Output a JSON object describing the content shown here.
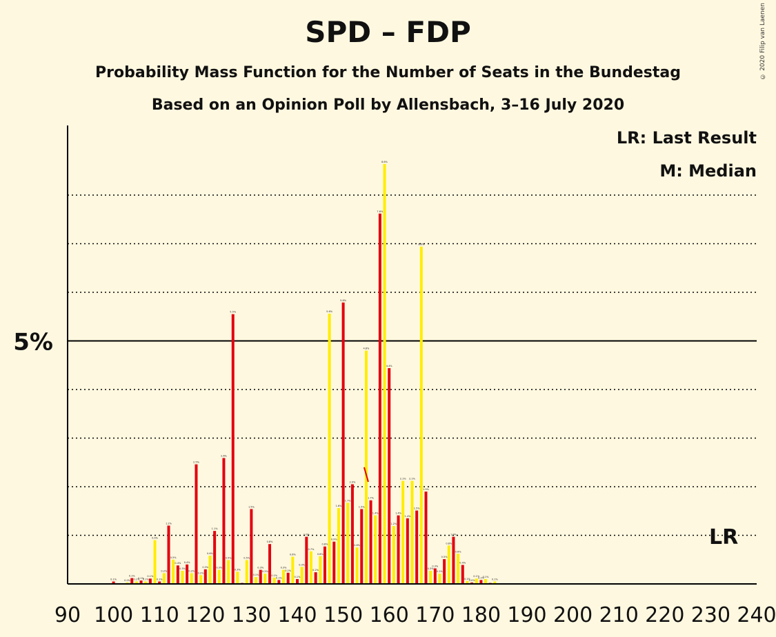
{
  "title": "SPD – FDP",
  "subtitle": "Probability Mass Function for the Number of Seats in the Bundestag",
  "subtitle2": "Based on an Opinion Poll by Allensbach, 3–16 July 2020",
  "copyright": "© 2020 Filip van Laenen",
  "legend": {
    "lr": "LR: Last Result",
    "median": "M: Median"
  },
  "lr_marker": "LR",
  "colors": {
    "red": "#E3000F",
    "yellow": "#FFED00",
    "background": "#FFF8E0",
    "axis": "#000000"
  },
  "chart_data": {
    "type": "bar",
    "xlabel": "",
    "ylabel": "",
    "xlim": [
      90,
      240
    ],
    "ylim": [
      0,
      9.4
    ],
    "xticks": [
      90,
      100,
      110,
      120,
      130,
      140,
      150,
      160,
      170,
      180,
      190,
      200,
      210,
      220,
      230,
      240
    ],
    "yticks": [
      {
        "value": 5,
        "label": "5%"
      }
    ],
    "minor_gridlines": [
      1,
      2,
      3,
      4,
      6,
      7,
      8
    ],
    "last_result_seats": 233,
    "median_seats": 155,
    "values": [
      [
        100,
        0.05,
        "red"
      ],
      [
        101,
        0.01,
        "yellow"
      ],
      [
        102,
        0.01,
        "red"
      ],
      [
        103,
        0.03,
        "yellow"
      ],
      [
        104,
        0.12,
        "red"
      ],
      [
        105,
        0.05,
        "yellow"
      ],
      [
        106,
        0.07,
        "red"
      ],
      [
        107,
        0.05,
        "yellow"
      ],
      [
        108,
        0.11,
        "red"
      ],
      [
        109,
        0.9,
        "yellow"
      ],
      [
        110,
        0.05,
        "red"
      ],
      [
        111,
        0.22,
        "yellow"
      ],
      [
        112,
        1.2,
        "red"
      ],
      [
        113,
        0.5,
        "yellow"
      ],
      [
        114,
        0.38,
        "red"
      ],
      [
        115,
        0.27,
        "yellow"
      ],
      [
        116,
        0.4,
        "red"
      ],
      [
        117,
        0.22,
        "yellow"
      ],
      [
        118,
        2.46,
        "red"
      ],
      [
        119,
        0.18,
        "yellow"
      ],
      [
        120,
        0.3,
        "red"
      ],
      [
        121,
        0.58,
        "yellow"
      ],
      [
        122,
        1.09,
        "red"
      ],
      [
        123,
        0.29,
        "yellow"
      ],
      [
        124,
        2.59,
        "red"
      ],
      [
        125,
        0.49,
        "yellow"
      ],
      [
        126,
        5.55,
        "red"
      ],
      [
        127,
        0.25,
        "yellow"
      ],
      [
        128,
        0.02,
        "red"
      ],
      [
        129,
        0.49,
        "yellow"
      ],
      [
        130,
        1.54,
        "red"
      ],
      [
        131,
        0.14,
        "yellow"
      ],
      [
        132,
        0.29,
        "red"
      ],
      [
        133,
        0.21,
        "yellow"
      ],
      [
        134,
        0.82,
        "red"
      ],
      [
        135,
        0.13,
        "yellow"
      ],
      [
        136,
        0.08,
        "red"
      ],
      [
        137,
        0.29,
        "yellow"
      ],
      [
        138,
        0.23,
        "red"
      ],
      [
        139,
        0.56,
        "yellow"
      ],
      [
        140,
        0.1,
        "red"
      ],
      [
        141,
        0.35,
        "yellow"
      ],
      [
        142,
        0.97,
        "red"
      ],
      [
        143,
        0.67,
        "yellow"
      ],
      [
        144,
        0.24,
        "red"
      ],
      [
        145,
        0.57,
        "yellow"
      ],
      [
        146,
        0.77,
        "red"
      ],
      [
        147,
        5.56,
        "yellow"
      ],
      [
        148,
        0.87,
        "red"
      ],
      [
        149,
        1.56,
        "yellow"
      ],
      [
        150,
        5.79,
        "red"
      ],
      [
        151,
        1.67,
        "yellow"
      ],
      [
        152,
        2.05,
        "red"
      ],
      [
        153,
        0.75,
        "yellow"
      ],
      [
        154,
        1.54,
        "red"
      ],
      [
        155,
        4.8,
        "yellow"
      ],
      [
        156,
        1.72,
        "red"
      ],
      [
        157,
        1.41,
        "yellow"
      ],
      [
        158,
        7.62,
        "red"
      ],
      [
        159,
        8.64,
        "yellow"
      ],
      [
        160,
        4.44,
        "red"
      ],
      [
        161,
        1.19,
        "yellow"
      ],
      [
        162,
        1.41,
        "red"
      ],
      [
        163,
        2.12,
        "yellow"
      ],
      [
        164,
        1.35,
        "red"
      ],
      [
        165,
        2.12,
        "yellow"
      ],
      [
        166,
        1.51,
        "red"
      ],
      [
        167,
        6.94,
        "yellow"
      ],
      [
        168,
        1.9,
        "red"
      ],
      [
        169,
        0.27,
        "yellow"
      ],
      [
        170,
        0.32,
        "red"
      ],
      [
        171,
        0.21,
        "yellow"
      ],
      [
        172,
        0.51,
        "red"
      ],
      [
        173,
        0.79,
        "yellow"
      ],
      [
        174,
        0.97,
        "red"
      ],
      [
        175,
        0.62,
        "yellow"
      ],
      [
        176,
        0.39,
        "red"
      ],
      [
        177,
        0.06,
        "yellow"
      ],
      [
        178,
        0.03,
        "red"
      ],
      [
        179,
        0.11,
        "yellow"
      ],
      [
        180,
        0.08,
        "red"
      ],
      [
        181,
        0.1,
        "yellow"
      ],
      [
        182,
        0.02,
        "red"
      ],
      [
        183,
        0.05,
        "yellow"
      ],
      [
        184,
        0.01,
        "red"
      ],
      [
        185,
        0.01,
        "yellow"
      ],
      [
        186,
        0.01,
        "red"
      ],
      [
        187,
        0.01,
        "yellow"
      ],
      [
        188,
        0.01,
        "red"
      ]
    ]
  }
}
